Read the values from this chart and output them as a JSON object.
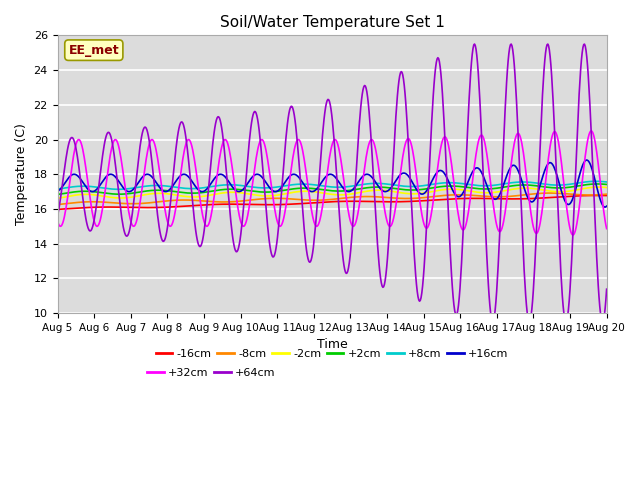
{
  "title": "Soil/Water Temperature Set 1",
  "xlabel": "Time",
  "ylabel": "Temperature (C)",
  "ylim": [
    10,
    26
  ],
  "yticks": [
    10,
    12,
    14,
    16,
    18,
    20,
    22,
    24,
    26
  ],
  "x_labels": [
    "Aug 5",
    "Aug 6",
    "Aug 7",
    "Aug 8",
    "Aug 9",
    "Aug 10",
    "Aug 11",
    "Aug 12",
    "Aug 13",
    "Aug 14",
    "Aug 15",
    "Aug 16",
    "Aug 17",
    "Aug 18",
    "Aug 19",
    "Aug 20"
  ],
  "annotation_text": "EE_met",
  "annotation_color": "#8B0000",
  "annotation_bg": "#FFFFC0",
  "series_labels": [
    "-16cm",
    "-8cm",
    "-2cm",
    "+2cm",
    "+8cm",
    "+16cm",
    "+32cm",
    "+64cm"
  ],
  "series_colors": [
    "#FF0000",
    "#FF8800",
    "#FFFF00",
    "#00CC00",
    "#00CCCC",
    "#0000CC",
    "#FF00FF",
    "#9900CC"
  ],
  "background_color": "#DCDCDC",
  "n_points": 720
}
